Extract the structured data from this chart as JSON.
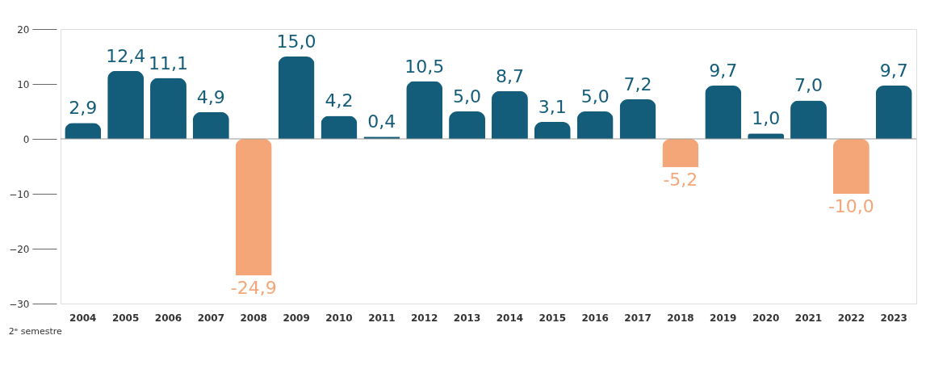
{
  "chart_data": {
    "type": "bar",
    "categories": [
      "2004",
      "2005",
      "2006",
      "2007",
      "2008",
      "2009",
      "2010",
      "2011",
      "2012",
      "2013",
      "2014",
      "2015",
      "2016",
      "2017",
      "2018",
      "2019",
      "2020",
      "2021",
      "2022",
      "2023"
    ],
    "values": [
      2.9,
      12.4,
      11.1,
      4.9,
      -24.9,
      15.0,
      4.2,
      0.4,
      10.5,
      5.0,
      8.7,
      3.1,
      5.0,
      7.2,
      -5.2,
      9.7,
      1.0,
      7.0,
      -10.0,
      9.7
    ],
    "value_labels": [
      "2,9",
      "12,4",
      "11,1",
      "4,9",
      "-24,9",
      "15,0",
      "4,2",
      "0,4",
      "10,5",
      "5,0",
      "8,7",
      "3,1",
      "5,0",
      "7,2",
      "-5,2",
      "9,7",
      "1,0",
      "7,0",
      "-10,0",
      "9,7"
    ],
    "colors": [
      "#145d7a",
      "#145d7a",
      "#145d7a",
      "#145d7a",
      "#f4a679",
      "#145d7a",
      "#145d7a",
      "#145d7a",
      "#145d7a",
      "#145d7a",
      "#145d7a",
      "#145d7a",
      "#145d7a",
      "#145d7a",
      "#f4a679",
      "#145d7a",
      "#145d7a",
      "#145d7a",
      "#f4a679",
      "#145d7a"
    ],
    "ylim": [
      -30,
      20
    ],
    "yticks": [
      20,
      10,
      0,
      -10,
      -20,
      -30
    ],
    "ref_lines": [
      {
        "axis": "y",
        "value": 0,
        "color": "#999999"
      }
    ],
    "annotations": [
      "2ᵉ semestre"
    ],
    "grid": false
  }
}
